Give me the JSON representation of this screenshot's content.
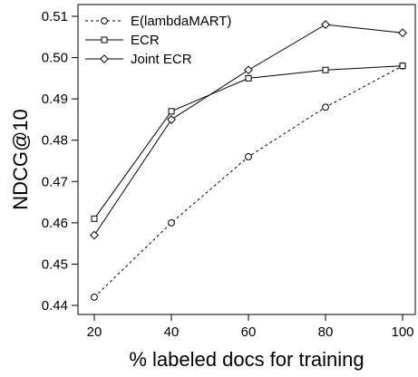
{
  "chart_data": {
    "type": "line",
    "title": "",
    "xlabel": "% labeled docs for training",
    "ylabel": "NDCG@10",
    "x": [
      20,
      40,
      60,
      80,
      100
    ],
    "xlim": [
      20,
      100
    ],
    "ylim": [
      0.44,
      0.51
    ],
    "xticks": [
      20,
      40,
      60,
      80,
      100
    ],
    "yticks": [
      0.44,
      0.45,
      0.46,
      0.47,
      0.48,
      0.49,
      0.5,
      0.51
    ],
    "grid": false,
    "legend": "top-left",
    "series": [
      {
        "name": "E(lambdaMART)",
        "marker": "circle",
        "line": "dotted",
        "values": [
          0.442,
          0.46,
          0.476,
          0.488,
          0.498
        ]
      },
      {
        "name": "ECR",
        "marker": "square",
        "line": "solid",
        "values": [
          0.461,
          0.487,
          0.495,
          0.497,
          0.498
        ]
      },
      {
        "name": "Joint ECR",
        "marker": "diamond",
        "line": "solid",
        "values": [
          0.457,
          0.485,
          0.497,
          0.508,
          0.506
        ]
      }
    ]
  }
}
